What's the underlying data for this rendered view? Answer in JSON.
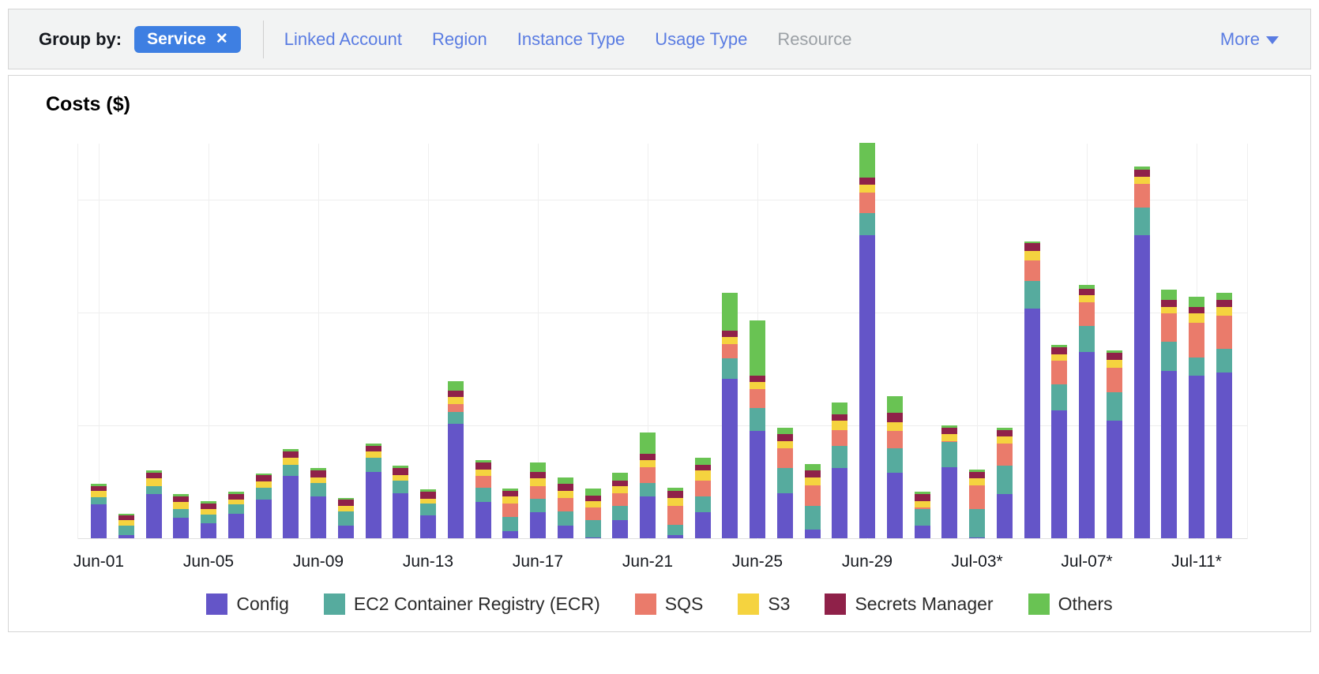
{
  "toolbar": {
    "group_by_label": "Group by:",
    "selected_tag": {
      "label": "Service",
      "remove_icon": "✕"
    },
    "options": [
      {
        "label": "Linked Account",
        "enabled": true
      },
      {
        "label": "Region",
        "enabled": true
      },
      {
        "label": "Instance Type",
        "enabled": true
      },
      {
        "label": "Usage Type",
        "enabled": true
      },
      {
        "label": "Resource",
        "enabled": false
      }
    ],
    "more_label": "More"
  },
  "chart": {
    "title": "Costs ($)"
  },
  "colors": {
    "config": "#6455c8",
    "ecr": "#56ab9e",
    "sqs": "#ea7b6b",
    "s3": "#f5d33f",
    "secrets_manager": "#8f2149",
    "others": "#69c353",
    "link_blue": "#5a7ce2",
    "pill_blue": "#3e7fe2",
    "disabled_gray": "#9ba0a5"
  },
  "chart_data": {
    "type": "bar",
    "stacked": true,
    "title": "Costs ($)",
    "ylabel": "Costs ($)",
    "y_axis_tick_labels_visible": false,
    "ylim": [
      0,
      3.5
    ],
    "y_gridlines": [
      1,
      2,
      3
    ],
    "grid": true,
    "legend_position": "bottom",
    "x_tick_interval": 4,
    "x_tick_labels": [
      "Jun-01",
      "Jun-05",
      "Jun-09",
      "Jun-13",
      "Jun-17",
      "Jun-21",
      "Jun-25",
      "Jun-29",
      "Jul-03*",
      "Jul-07*",
      "Jul-11*"
    ],
    "categories": [
      "Jun-01",
      "Jun-02",
      "Jun-03",
      "Jun-04",
      "Jun-05",
      "Jun-06",
      "Jun-07",
      "Jun-08",
      "Jun-09",
      "Jun-10",
      "Jun-11",
      "Jun-12",
      "Jun-13",
      "Jun-14",
      "Jun-15",
      "Jun-16",
      "Jun-17",
      "Jun-18",
      "Jun-19",
      "Jun-20",
      "Jun-21",
      "Jun-22",
      "Jun-23",
      "Jun-24",
      "Jun-25",
      "Jun-26",
      "Jun-27",
      "Jun-28",
      "Jun-29",
      "Jun-30",
      "Jul-01",
      "Jul-02",
      "Jul-03",
      "Jul-04",
      "Jul-05",
      "Jul-06",
      "Jul-07",
      "Jul-08",
      "Jul-09",
      "Jul-10",
      "Jul-11",
      "Jul-12"
    ],
    "series": [
      {
        "name": "Config",
        "color": "#6455c8",
        "values": [
          0.3,
          0.03,
          0.39,
          0.18,
          0.13,
          0.22,
          0.34,
          0.55,
          0.37,
          0.11,
          0.59,
          0.4,
          0.2,
          1.01,
          0.32,
          0.06,
          0.23,
          0.11,
          0.01,
          0.16,
          0.37,
          0.03,
          0.23,
          1.41,
          0.95,
          0.4,
          0.08,
          0.62,
          2.68,
          0.58,
          0.11,
          0.63,
          0.01,
          0.39,
          2.03,
          1.13,
          1.65,
          1.04,
          2.68,
          1.48,
          1.44,
          1.47
        ]
      },
      {
        "name": "EC2 Container Registry (ECR)",
        "color": "#56ab9e",
        "values": [
          0.06,
          0.08,
          0.07,
          0.08,
          0.08,
          0.08,
          0.11,
          0.1,
          0.12,
          0.13,
          0.12,
          0.11,
          0.11,
          0.11,
          0.13,
          0.13,
          0.12,
          0.13,
          0.15,
          0.13,
          0.12,
          0.09,
          0.14,
          0.18,
          0.2,
          0.22,
          0.21,
          0.2,
          0.2,
          0.22,
          0.15,
          0.22,
          0.25,
          0.25,
          0.25,
          0.23,
          0.23,
          0.25,
          0.25,
          0.26,
          0.16,
          0.21
        ]
      },
      {
        "name": "SQS",
        "color": "#ea7b6b",
        "values": [
          0,
          0,
          0,
          0,
          0,
          0,
          0,
          0,
          0,
          0,
          0,
          0,
          0,
          0.07,
          0.1,
          0.12,
          0.11,
          0.12,
          0.11,
          0.11,
          0.14,
          0.17,
          0.14,
          0.13,
          0.17,
          0.18,
          0.18,
          0.14,
          0.18,
          0.15,
          0.01,
          0.01,
          0.21,
          0.2,
          0.18,
          0.21,
          0.21,
          0.22,
          0.21,
          0.25,
          0.31,
          0.29
        ]
      },
      {
        "name": "S3",
        "color": "#f5d33f",
        "values": [
          0.06,
          0.05,
          0.07,
          0.06,
          0.05,
          0.04,
          0.05,
          0.06,
          0.05,
          0.05,
          0.06,
          0.05,
          0.04,
          0.06,
          0.06,
          0.06,
          0.07,
          0.06,
          0.06,
          0.06,
          0.06,
          0.07,
          0.09,
          0.06,
          0.06,
          0.06,
          0.07,
          0.08,
          0.07,
          0.08,
          0.06,
          0.06,
          0.06,
          0.06,
          0.08,
          0.06,
          0.06,
          0.07,
          0.06,
          0.06,
          0.08,
          0.08
        ]
      },
      {
        "name": "Secrets Manager",
        "color": "#8f2149",
        "values": [
          0.04,
          0.04,
          0.05,
          0.05,
          0.05,
          0.05,
          0.06,
          0.06,
          0.06,
          0.05,
          0.05,
          0.06,
          0.06,
          0.06,
          0.06,
          0.05,
          0.06,
          0.06,
          0.05,
          0.05,
          0.06,
          0.06,
          0.05,
          0.06,
          0.06,
          0.06,
          0.06,
          0.06,
          0.06,
          0.08,
          0.06,
          0.06,
          0.06,
          0.06,
          0.07,
          0.06,
          0.06,
          0.06,
          0.06,
          0.06,
          0.06,
          0.06
        ]
      },
      {
        "name": "Others",
        "color": "#69c353",
        "values": [
          0.02,
          0.02,
          0.02,
          0.02,
          0.02,
          0.02,
          0.01,
          0.02,
          0.02,
          0.02,
          0.02,
          0.02,
          0.02,
          0.08,
          0.02,
          0.02,
          0.08,
          0.06,
          0.06,
          0.07,
          0.19,
          0.03,
          0.06,
          0.33,
          0.49,
          0.06,
          0.06,
          0.1,
          0.31,
          0.15,
          0.02,
          0.02,
          0.02,
          0.02,
          0.02,
          0.02,
          0.03,
          0.02,
          0.03,
          0.09,
          0.09,
          0.06
        ]
      }
    ]
  }
}
